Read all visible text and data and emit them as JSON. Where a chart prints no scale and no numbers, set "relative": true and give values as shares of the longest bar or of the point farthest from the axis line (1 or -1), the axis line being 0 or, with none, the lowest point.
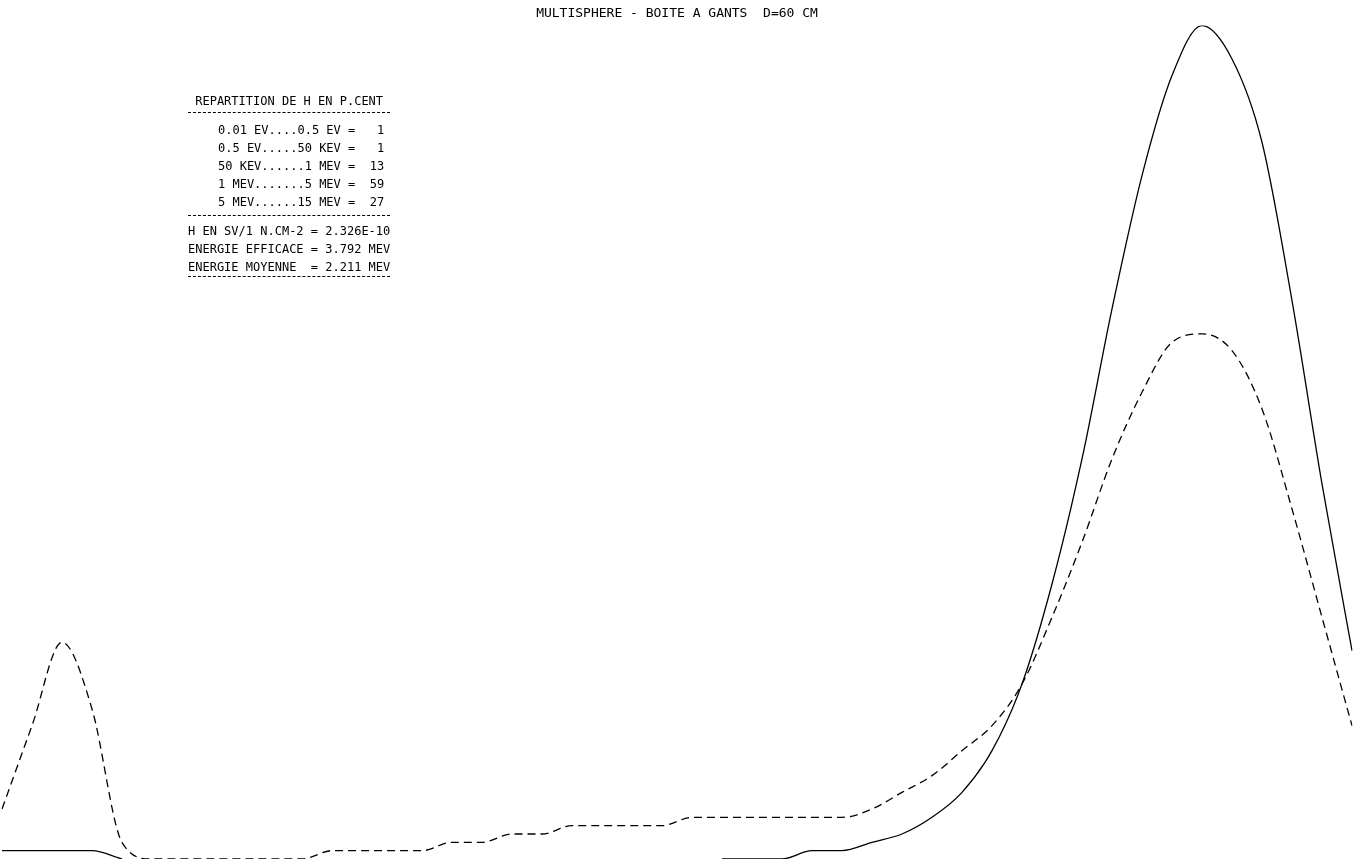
{
  "chart_data": {
    "type": "line",
    "title": "MULTISPHERE - BOITE A GANTS  D=60 CM",
    "relative": true,
    "legend": false,
    "marker": "none",
    "categories": [
      null,
      null,
      null,
      null,
      null,
      null,
      null,
      null,
      null,
      null,
      null,
      null,
      null,
      null,
      null,
      null,
      null,
      null,
      null,
      null,
      null,
      null,
      null,
      null,
      null,
      null,
      null,
      null,
      null,
      null,
      null,
      null,
      null,
      null,
      null,
      null,
      null,
      null,
      null,
      null,
      null,
      null,
      null,
      null,
      null,
      null
    ],
    "series": [
      {
        "color": "#000000",
        "line_style": "solid",
        "values": [
          0.01,
          0.01,
          0.01,
          0.01,
          0.0,
          null,
          null,
          null,
          null,
          null,
          null,
          null,
          null,
          null,
          null,
          null,
          null,
          null,
          null,
          null,
          null,
          null,
          null,
          null,
          0.0,
          0.0,
          0.0,
          0.01,
          0.01,
          0.02,
          0.03,
          0.05,
          0.08,
          0.13,
          0.21,
          0.33,
          0.48,
          0.66,
          0.82,
          0.94,
          1.0,
          0.96,
          0.86,
          0.67,
          0.45,
          0.25
        ]
      },
      {
        "color": "#000000",
        "line_style": "dashed",
        "values": [
          0.06,
          0.16,
          0.26,
          0.18,
          0.02,
          0.0,
          0.0,
          0.0,
          0.0,
          0.0,
          0.0,
          0.01,
          0.01,
          0.01,
          0.01,
          0.02,
          0.02,
          0.03,
          0.03,
          0.04,
          0.04,
          0.04,
          0.04,
          0.05,
          0.05,
          0.05,
          0.05,
          0.05,
          0.05,
          0.06,
          0.08,
          0.1,
          0.13,
          0.16,
          0.21,
          0.29,
          0.38,
          0.48,
          0.56,
          0.62,
          0.63,
          0.61,
          0.54,
          0.42,
          0.29,
          0.16
        ]
      }
    ],
    "annotations": [
      "REPARTITION DE H EN P.CENT",
      "0.01 EV....0.5 EV =   1",
      "0.5 EV.....50 KEV =   1",
      "50 KEV......1 MEV =  13",
      "1 MEV.......5 MEV =  59",
      "5 MEV......15 MEV =  27",
      "H EN SV/1 N.CM-2 = 2.326E-10",
      "ENERGIE EFFICACE = 3.792 MEV",
      "ENERGIE MOYENNE  = 2.211 MEV"
    ]
  }
}
